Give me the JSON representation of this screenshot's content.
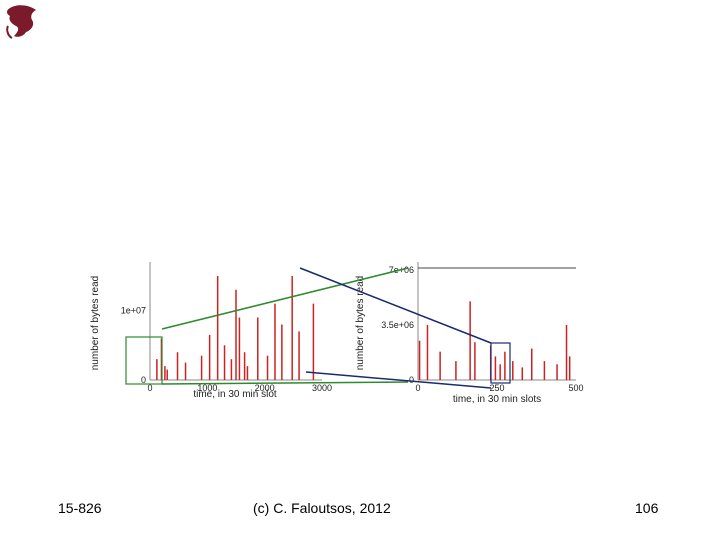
{
  "slide": {
    "course": "15-826",
    "copyright": "(c) C. Faloutsos, 2012",
    "page": "106"
  },
  "logo_icon": "dragon-icon",
  "colors": {
    "bars": "#cc2222",
    "zoom_green": "#2d8a2d",
    "zoom_navy": "#1a2a6e"
  },
  "chart_data": [
    {
      "type": "bar",
      "name": "full-trace",
      "xlabel": "time, in 30 min slot",
      "ylabel": "number of bytes read",
      "xlim": [
        0,
        3000
      ],
      "xticks": [
        "0",
        "1000",
        "2000",
        "3000"
      ],
      "ylim": [
        0,
        17000000
      ],
      "yticks": [
        "0",
        "1e+07"
      ],
      "x": [
        120,
        200,
        260,
        300,
        480,
        620,
        900,
        1040,
        1180,
        1300,
        1420,
        1500,
        1560,
        1650,
        1700,
        1880,
        2050,
        2180,
        2300,
        2480,
        2600,
        2850
      ],
      "values": [
        3000000,
        6000000,
        2000000,
        1500000,
        4000000,
        2500000,
        3500000,
        6500000,
        15000000,
        5000000,
        3000000,
        13000000,
        9000000,
        4000000,
        2000000,
        9000000,
        3500000,
        11000000,
        8000000,
        15000000,
        7000000,
        11000000
      ]
    },
    {
      "type": "bar",
      "name": "zoomed-trace",
      "xlabel": "time, in 30 min slots",
      "ylabel": "number of bytes read",
      "xlim": [
        0,
        500
      ],
      "xticks": [
        "0",
        "250",
        "500"
      ],
      "ylim": [
        0,
        7500000
      ],
      "yticks": [
        "0",
        "3.5e+06",
        "7e+06"
      ],
      "x": [
        5,
        30,
        70,
        120,
        165,
        180,
        230,
        245,
        260,
        275,
        300,
        330,
        360,
        400,
        440,
        470,
        480
      ],
      "values": [
        2500000,
        3500000,
        1800000,
        1200000,
        5000000,
        2400000,
        2200000,
        1500000,
        1000000,
        1800000,
        1200000,
        800000,
        2000000,
        1200000,
        1000000,
        3500000,
        1500000
      ]
    }
  ]
}
